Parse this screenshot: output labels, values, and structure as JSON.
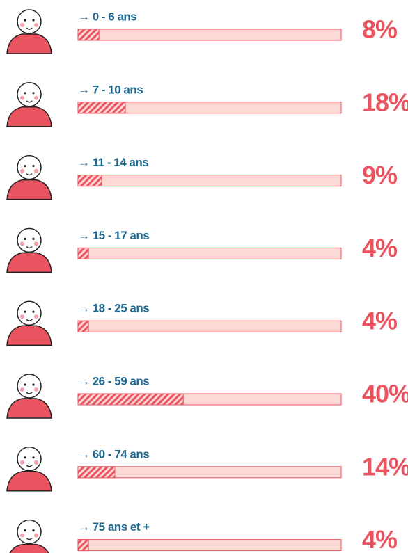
{
  "chart_data": {
    "type": "bar",
    "orientation": "horizontal",
    "categories": [
      "→ 0 - 6 ans",
      "→ 7 - 10 ans",
      "→ 11 - 14 ans",
      "→ 15 - 17 ans",
      "→ 18 - 25 ans",
      "→ 26 - 59 ans",
      "→ 60 - 74 ans",
      "→ 75 ans et +"
    ],
    "values": [
      8,
      18,
      9,
      4,
      4,
      40,
      14,
      4
    ],
    "value_labels": [
      "8%",
      "18%",
      "9%",
      "4%",
      "4%",
      "40%",
      "14%",
      "4%"
    ],
    "color": "#ea5460",
    "background_color": "#fdd9d6",
    "xlim": [
      0,
      100
    ]
  }
}
